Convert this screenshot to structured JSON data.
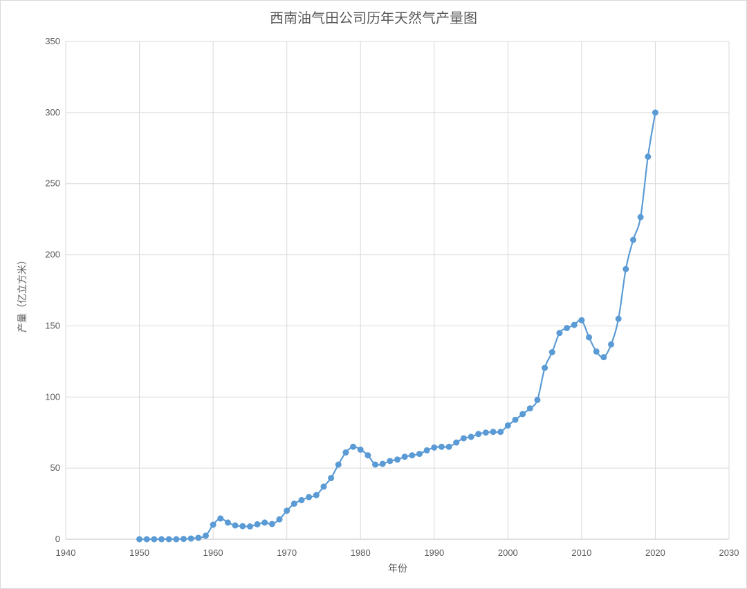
{
  "chart_data": {
    "type": "line",
    "title": "西南油气田公司历年天然气产量图",
    "xlabel": "年份",
    "ylabel": "产量（亿立方米）",
    "xlim": [
      1940,
      2030
    ],
    "ylim": [
      0,
      350
    ],
    "xticks": [
      1940,
      1950,
      1960,
      1970,
      1980,
      1990,
      2000,
      2010,
      2020,
      2030
    ],
    "yticks": [
      0,
      50,
      100,
      150,
      200,
      250,
      300,
      350
    ],
    "grid": true,
    "smooth": true,
    "color": "#5b9bd5",
    "x": [
      1950,
      1951,
      1952,
      1953,
      1954,
      1955,
      1956,
      1957,
      1958,
      1959,
      1960,
      1961,
      1962,
      1963,
      1964,
      1965,
      1966,
      1967,
      1968,
      1969,
      1970,
      1971,
      1972,
      1973,
      1974,
      1975,
      1976,
      1977,
      1978,
      1979,
      1980,
      1981,
      1982,
      1983,
      1984,
      1985,
      1986,
      1987,
      1988,
      1989,
      1990,
      1991,
      1992,
      1993,
      1994,
      1995,
      1996,
      1997,
      1998,
      1999,
      2000,
      2001,
      2002,
      2003,
      2004,
      2005,
      2006,
      2007,
      2008,
      2009,
      2010,
      2011,
      2012,
      2013,
      2014,
      2015,
      2016,
      2017,
      2018,
      2019,
      2020
    ],
    "y": [
      0,
      0,
      0,
      0,
      0,
      0,
      0.2,
      0.5,
      1,
      2.5,
      10.2,
      14.6,
      11.7,
      9.7,
      9.2,
      9,
      10.5,
      11.7,
      10.7,
      14,
      20,
      25,
      27.5,
      29.6,
      31,
      37,
      43,
      52.5,
      61,
      65,
      63,
      59,
      52.5,
      53,
      55,
      56,
      58,
      59,
      60,
      62.5,
      64.5,
      65,
      65,
      68,
      71,
      72,
      74,
      75,
      75.5,
      75.5,
      80,
      84,
      88,
      92,
      98,
      120.5,
      131.5,
      145,
      148.5,
      150.7,
      154,
      142,
      132,
      128,
      137,
      155,
      190,
      210.5,
      226.5,
      269,
      300
    ]
  }
}
